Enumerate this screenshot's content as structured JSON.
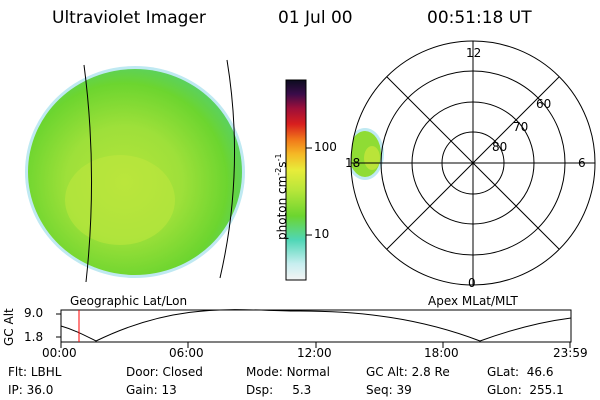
{
  "header": {
    "instrument": "Ultraviolet Imager",
    "date": "01 Jul 00",
    "time": "00:51:18 UT"
  },
  "earth_image": {
    "label": "Geographic Lat/Lon",
    "colors": {
      "green": "#6cd52f",
      "yellow": "#b8e63a",
      "cyan": "#4fd6b6",
      "edge": "#bfe9f2"
    }
  },
  "colorbar": {
    "unit_main": "photon cm",
    "unit_exp1": "-2",
    "unit_mid": "s",
    "unit_exp2": "-1",
    "tick_100": "100",
    "tick_10": "10",
    "stops": [
      "#f4f4f4",
      "#c8eef0",
      "#4fd6b6",
      "#6cd52f",
      "#b8e63a",
      "#e8ec3a",
      "#f5b825",
      "#f17a1a",
      "#d81e1e",
      "#9c0f3a",
      "#3a0c4a",
      "#0c0c20"
    ]
  },
  "polar_plot": {
    "label": "Apex MLat/MLT",
    "mlt_12": "12",
    "mlt_6": "6",
    "mlt_18": "18",
    "mlt_0": "0",
    "lat_60": "60",
    "lat_70": "70",
    "lat_80": "80"
  },
  "altitude_plot": {
    "axis_label": "GC Alt",
    "y_max": "9.0",
    "y_min": "1.8",
    "x_ticks": [
      "00:00",
      "06:00",
      "12:00",
      "18:00",
      "23:59"
    ],
    "current_time_marker": "00:51:18",
    "marker_color": "#ff0000"
  },
  "footer": {
    "flt_label": "Flt:",
    "flt_value": "LBHL",
    "ip_label": "IP:",
    "ip_value": "36.0",
    "door_label": "Door:",
    "door_value": "Closed",
    "gain_label": "Gain:",
    "gain_value": "13",
    "mode_label": "Mode:",
    "mode_value": "Normal",
    "dsp_label": "Dsp:",
    "dsp_value": "5.3",
    "gcalt_label": "GC Alt:",
    "gcalt_value": "2.8 Re",
    "seq_label": "Seq:",
    "seq_value": "39",
    "glat_label": "GLat:",
    "glat_value": "46.6",
    "glon_label": "GLon:",
    "glon_value": "255.1"
  }
}
